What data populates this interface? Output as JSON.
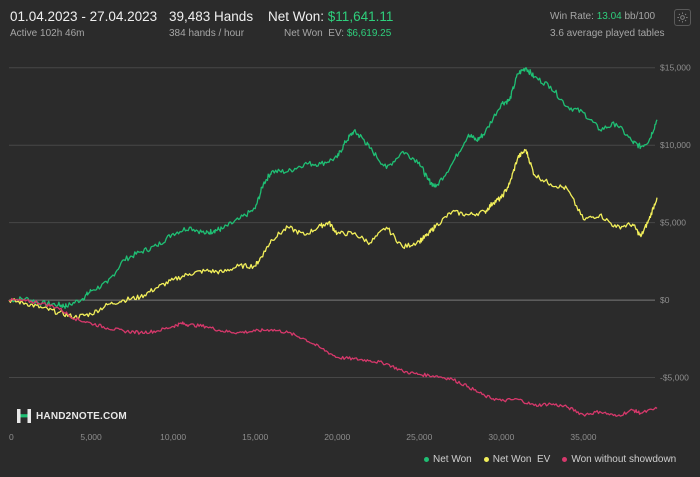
{
  "header": {
    "date_range": "01.04.2023 - 27.04.2023",
    "active": "Active 102h 46m",
    "hands": "39,483 Hands",
    "hands_per_hour": "384 hands / hour",
    "net_won_label": "Net Won:",
    "net_won_value": "$11,641.11",
    "net_won_ev_label": "Net Won  EV:",
    "net_won_ev_value": "$6,619.25",
    "win_rate_label": "Win Rate:",
    "win_rate_value": "13.04",
    "win_rate_unit": "bb/100",
    "tables": "3.6 average played tables"
  },
  "logo": {
    "text": "HAND2NOTE.COM"
  },
  "icons": {
    "settings": "gear-icon",
    "logo": "hand2note-logo-icon"
  },
  "colors": {
    "background": "#2b2b2b",
    "net_won": "#1fbf74",
    "net_won_ev": "#f2ef5a",
    "won_without_showdown": "#d6386b",
    "accent_green": "#2ecf7c"
  },
  "chart_data": {
    "type": "line",
    "xlim": [
      0,
      39483
    ],
    "ylim": [
      -8000,
      15500
    ],
    "x_ticks": [
      0,
      5000,
      10000,
      15000,
      20000,
      25000,
      30000,
      35000
    ],
    "x_tick_labels": [
      "0",
      "5,000",
      "10,000",
      "15,000",
      "20,000",
      "25,000",
      "30,000",
      "35,000"
    ],
    "y_ticks": [
      15000,
      10000,
      5000,
      0,
      -5000
    ],
    "y_tick_labels": [
      "$15,000",
      "$10,000",
      "$5,000",
      "$0",
      "-$5,000"
    ],
    "legend_position": "bottom-right",
    "series": [
      {
        "name": "Net Won",
        "color": "#1fbf74",
        "points": [
          [
            0,
            0
          ],
          [
            1000,
            100
          ],
          [
            2000,
            -200
          ],
          [
            3000,
            -300
          ],
          [
            3500,
            -400
          ],
          [
            4500,
            100
          ],
          [
            5000,
            600
          ],
          [
            6000,
            1100
          ],
          [
            7000,
            2600
          ],
          [
            8000,
            3100
          ],
          [
            9000,
            3500
          ],
          [
            10000,
            4300
          ],
          [
            11000,
            4700
          ],
          [
            12000,
            4300
          ],
          [
            12500,
            4500
          ],
          [
            13000,
            4600
          ],
          [
            14000,
            5200
          ],
          [
            15000,
            5900
          ],
          [
            15500,
            7500
          ],
          [
            16000,
            8300
          ],
          [
            17000,
            8300
          ],
          [
            18000,
            8800
          ],
          [
            19000,
            8800
          ],
          [
            20000,
            9200
          ],
          [
            20500,
            10200
          ],
          [
            21000,
            10900
          ],
          [
            21500,
            10500
          ],
          [
            22000,
            9800
          ],
          [
            23000,
            8500
          ],
          [
            24000,
            9600
          ],
          [
            25000,
            8900
          ],
          [
            25500,
            7800
          ],
          [
            26000,
            7300
          ],
          [
            27000,
            8800
          ],
          [
            28000,
            10700
          ],
          [
            28500,
            10300
          ],
          [
            29000,
            10800
          ],
          [
            30000,
            12700
          ],
          [
            30500,
            12900
          ],
          [
            31000,
            14600
          ],
          [
            31500,
            15000
          ],
          [
            32000,
            14400
          ],
          [
            33000,
            13800
          ],
          [
            34000,
            12500
          ],
          [
            35000,
            12100
          ],
          [
            36000,
            11000
          ],
          [
            37000,
            11400
          ],
          [
            38000,
            10200
          ],
          [
            38500,
            9900
          ],
          [
            39000,
            10300
          ],
          [
            39483,
            11641
          ]
        ]
      },
      {
        "name": "Net Won  EV",
        "color": "#f2ef5a",
        "points": [
          [
            0,
            0
          ],
          [
            1000,
            -200
          ],
          [
            2000,
            -500
          ],
          [
            3000,
            -800
          ],
          [
            4000,
            -1100
          ],
          [
            5000,
            -900
          ],
          [
            6000,
            -300
          ],
          [
            7000,
            0
          ],
          [
            8000,
            200
          ],
          [
            9000,
            800
          ],
          [
            10000,
            1300
          ],
          [
            11000,
            1700
          ],
          [
            12000,
            1900
          ],
          [
            13000,
            1800
          ],
          [
            14000,
            2200
          ],
          [
            15000,
            2200
          ],
          [
            15500,
            3000
          ],
          [
            16000,
            3900
          ],
          [
            17000,
            4700
          ],
          [
            18000,
            4200
          ],
          [
            19000,
            4800
          ],
          [
            19500,
            5000
          ],
          [
            20000,
            4300
          ],
          [
            21000,
            4300
          ],
          [
            22000,
            3700
          ],
          [
            23000,
            4700
          ],
          [
            24000,
            3400
          ],
          [
            25000,
            3800
          ],
          [
            25500,
            4200
          ],
          [
            26000,
            4800
          ],
          [
            27000,
            5700
          ],
          [
            28000,
            5500
          ],
          [
            29000,
            5700
          ],
          [
            29500,
            6300
          ],
          [
            30000,
            6600
          ],
          [
            30500,
            7500
          ],
          [
            31000,
            9200
          ],
          [
            31500,
            9700
          ],
          [
            32000,
            8100
          ],
          [
            33000,
            7500
          ],
          [
            34000,
            7200
          ],
          [
            35000,
            5200
          ],
          [
            36000,
            5500
          ],
          [
            37000,
            4700
          ],
          [
            38000,
            4900
          ],
          [
            38500,
            4100
          ],
          [
            39000,
            5200
          ],
          [
            39483,
            6619
          ]
        ]
      },
      {
        "name": "Won without showdown",
        "color": "#d6386b",
        "points": [
          [
            0,
            0
          ],
          [
            1000,
            -50
          ],
          [
            2000,
            -200
          ],
          [
            3000,
            -500
          ],
          [
            4000,
            -1200
          ],
          [
            5000,
            -1500
          ],
          [
            6000,
            -1800
          ],
          [
            7000,
            -2000
          ],
          [
            8000,
            -2100
          ],
          [
            9000,
            -2000
          ],
          [
            10000,
            -1700
          ],
          [
            10500,
            -1500
          ],
          [
            11000,
            -1600
          ],
          [
            12000,
            -1700
          ],
          [
            13000,
            -2000
          ],
          [
            14000,
            -2100
          ],
          [
            15000,
            -2000
          ],
          [
            16000,
            -1900
          ],
          [
            17000,
            -2100
          ],
          [
            18000,
            -2500
          ],
          [
            19000,
            -3100
          ],
          [
            20000,
            -3700
          ],
          [
            21000,
            -3800
          ],
          [
            22000,
            -3900
          ],
          [
            23000,
            -4100
          ],
          [
            24000,
            -4600
          ],
          [
            25000,
            -4800
          ],
          [
            26000,
            -4900
          ],
          [
            27000,
            -5100
          ],
          [
            28000,
            -5600
          ],
          [
            29000,
            -6200
          ],
          [
            30000,
            -6500
          ],
          [
            31000,
            -6400
          ],
          [
            32000,
            -6800
          ],
          [
            33000,
            -6700
          ],
          [
            34000,
            -6900
          ],
          [
            35000,
            -7400
          ],
          [
            36000,
            -7200
          ],
          [
            37000,
            -7500
          ],
          [
            38000,
            -7100
          ],
          [
            38500,
            -7300
          ],
          [
            39483,
            -7000
          ]
        ]
      }
    ]
  }
}
